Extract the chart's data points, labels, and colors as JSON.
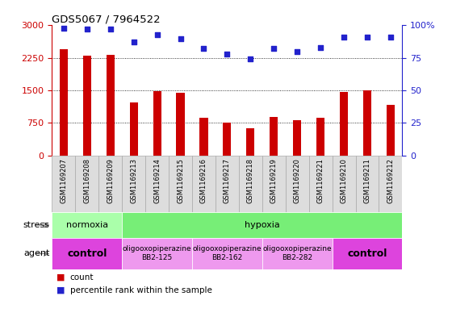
{
  "title": "GDS5067 / 7964522",
  "samples": [
    "GSM1169207",
    "GSM1169208",
    "GSM1169209",
    "GSM1169213",
    "GSM1169214",
    "GSM1169215",
    "GSM1169216",
    "GSM1169217",
    "GSM1169218",
    "GSM1169219",
    "GSM1169220",
    "GSM1169221",
    "GSM1169210",
    "GSM1169211",
    "GSM1169212"
  ],
  "counts": [
    2450,
    2300,
    2320,
    1220,
    1480,
    1450,
    870,
    760,
    620,
    880,
    810,
    870,
    1470,
    1500,
    1170
  ],
  "percentiles": [
    98,
    97,
    97,
    87,
    93,
    90,
    82,
    78,
    74,
    82,
    80,
    83,
    91,
    91,
    91
  ],
  "bar_color": "#cc0000",
  "dot_color": "#2222cc",
  "ylim_left": [
    0,
    3000
  ],
  "ylim_right": [
    0,
    100
  ],
  "yticks_left": [
    0,
    750,
    1500,
    2250,
    3000
  ],
  "yticks_right": [
    0,
    25,
    50,
    75,
    100
  ],
  "ytick_labels_right": [
    "0",
    "25",
    "50",
    "75",
    "100%"
  ],
  "stress_labels": [
    {
      "text": "normoxia",
      "start": 0,
      "end": 3,
      "color": "#aaffaa"
    },
    {
      "text": "hypoxia",
      "start": 3,
      "end": 15,
      "color": "#77ee77"
    }
  ],
  "agent_labels": [
    {
      "text": "control",
      "start": 0,
      "end": 3,
      "color": "#dd44dd",
      "bold": true,
      "fontsize": 9
    },
    {
      "text": "oligooxopiperazine\nBB2-125",
      "start": 3,
      "end": 6,
      "color": "#ee99ee",
      "bold": false,
      "fontsize": 6.5
    },
    {
      "text": "oligooxopiperazine\nBB2-162",
      "start": 6,
      "end": 9,
      "color": "#ee99ee",
      "bold": false,
      "fontsize": 6.5
    },
    {
      "text": "oligooxopiperazine\nBB2-282",
      "start": 9,
      "end": 12,
      "color": "#ee99ee",
      "bold": false,
      "fontsize": 6.5
    },
    {
      "text": "control",
      "start": 12,
      "end": 15,
      "color": "#dd44dd",
      "bold": true,
      "fontsize": 9
    }
  ],
  "bar_color_left_axis": "#cc0000",
  "right_axis_color": "#2222cc",
  "background_color": "#ffffff",
  "label_area_bg": "#dddddd",
  "label_area_border": "#aaaaaa"
}
